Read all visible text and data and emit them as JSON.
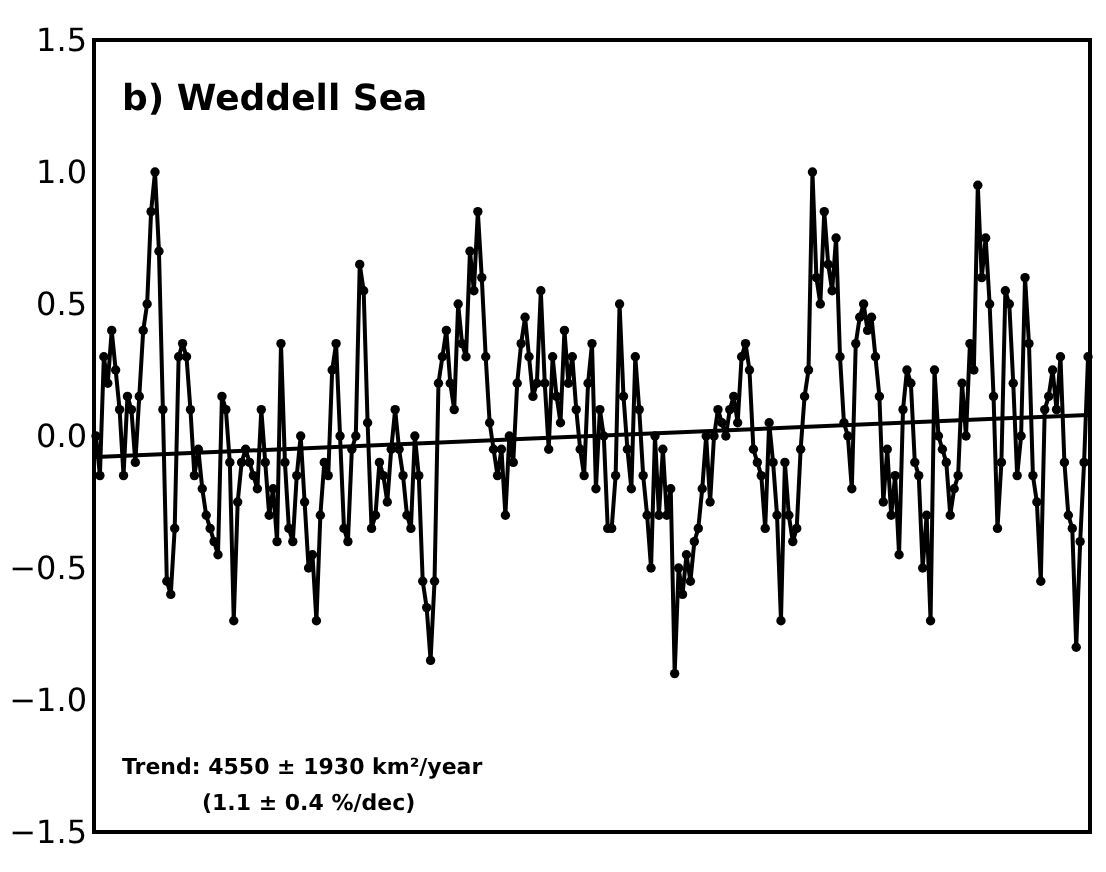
{
  "chart_data": {
    "type": "line",
    "annotations": [
      "b) Weddell Sea",
      "Trend: 4550 ± 1930 km²/year",
      "(1.1 ± 0.4 %/dec)"
    ],
    "ylim": [
      -1.5,
      1.5
    ],
    "yticks": [
      {
        "value": -1.5,
        "label": "−1.5"
      },
      {
        "value": -1.0,
        "label": "−1.0"
      },
      {
        "value": -0.5,
        "label": "−0.5"
      },
      {
        "value": 0.0,
        "label": "0.0"
      },
      {
        "value": 0.5,
        "label": "0.5"
      },
      {
        "value": 1.0,
        "label": "1.0"
      },
      {
        "value": 1.5,
        "label": "1.5"
      }
    ],
    "grid": false,
    "tick_labels": "y",
    "marker": "circle",
    "line_style": "solid",
    "categories": [
      null,
      null,
      null,
      null,
      null,
      null,
      null,
      null,
      null,
      null,
      null,
      null,
      null,
      null,
      null,
      null,
      null,
      null,
      null,
      null,
      null,
      null,
      null,
      null,
      null,
      null,
      null,
      null,
      null,
      null,
      null,
      null,
      null,
      null,
      null,
      null,
      null,
      null,
      null,
      null,
      null,
      null,
      null,
      null,
      null,
      null,
      null,
      null,
      null,
      null,
      null,
      null,
      null,
      null,
      null,
      null,
      null,
      null,
      null,
      null,
      null,
      null,
      null,
      null,
      null,
      null,
      null,
      null,
      null,
      null,
      null,
      null,
      null,
      null,
      null,
      null,
      null,
      null,
      null,
      null,
      null,
      null,
      null,
      null,
      null,
      null,
      null,
      null,
      null,
      null,
      null,
      null,
      null,
      null,
      null,
      null,
      null,
      null,
      null,
      null,
      null,
      null,
      null,
      null,
      null,
      null,
      null,
      null,
      null,
      null,
      null,
      null,
      null,
      null,
      null,
      null,
      null,
      null,
      null,
      null,
      null,
      null,
      null,
      null,
      null,
      null,
      null,
      null,
      null,
      null,
      null,
      null,
      null,
      null,
      null,
      null,
      null,
      null,
      null,
      null,
      null,
      null,
      null,
      null,
      null,
      null,
      null,
      null,
      null,
      null,
      null,
      null,
      null,
      null,
      null,
      null,
      null,
      null,
      null,
      null,
      null,
      null,
      null,
      null,
      null,
      null,
      null,
      null,
      null,
      null,
      null,
      null,
      null,
      null,
      null,
      null,
      null,
      null,
      null,
      null,
      null,
      null,
      null,
      null,
      null,
      null,
      null,
      null,
      null,
      null,
      null,
      null,
      null,
      null,
      null,
      null,
      null,
      null,
      null,
      null,
      null,
      null,
      null,
      null,
      null,
      null,
      null,
      null,
      null,
      null,
      null,
      null,
      null,
      null,
      null,
      null,
      null,
      null,
      null,
      null,
      null,
      null,
      null,
      null,
      null,
      null,
      null,
      null,
      null,
      null,
      null,
      null,
      null,
      null,
      null,
      null,
      null,
      null,
      null,
      null,
      null,
      null,
      null,
      null,
      null,
      null,
      null,
      null,
      null,
      null,
      null,
      null,
      null
    ],
    "series": [
      {
        "color": "#000000",
        "values": [
          0.0,
          -0.15,
          0.3,
          0.2,
          0.4,
          0.25,
          0.1,
          -0.15,
          0.15,
          0.1,
          -0.1,
          0.15,
          0.4,
          0.5,
          0.85,
          1.0,
          0.7,
          0.1,
          -0.55,
          -0.6,
          -0.35,
          0.3,
          0.35,
          0.3,
          0.1,
          -0.15,
          -0.05,
          -0.2,
          -0.3,
          -0.35,
          -0.4,
          -0.45,
          0.15,
          0.1,
          -0.1,
          -0.7,
          -0.25,
          -0.1,
          -0.05,
          -0.1,
          -0.15,
          -0.2,
          0.1,
          -0.1,
          -0.3,
          -0.2,
          -0.4,
          0.35,
          -0.1,
          -0.35,
          -0.4,
          -0.15,
          0.0,
          -0.25,
          -0.5,
          -0.45,
          -0.7,
          -0.3,
          -0.1,
          -0.15,
          0.25,
          0.35,
          0.0,
          -0.35,
          -0.4,
          -0.05,
          0.0,
          0.65,
          0.55,
          0.05,
          -0.35,
          -0.3,
          -0.1,
          -0.15,
          -0.25,
          -0.05,
          0.1,
          -0.05,
          -0.15,
          -0.3,
          -0.35,
          0.0,
          -0.15,
          -0.55,
          -0.65,
          -0.85,
          -0.55,
          0.2,
          0.3,
          0.4,
          0.2,
          0.1,
          0.5,
          0.35,
          0.3,
          0.7,
          0.55,
          0.85,
          0.6,
          0.3,
          0.05,
          -0.05,
          -0.15,
          -0.05,
          -0.3,
          0.0,
          -0.1,
          0.2,
          0.35,
          0.45,
          0.3,
          0.15,
          0.2,
          0.55,
          0.2,
          -0.05,
          0.3,
          0.15,
          0.05,
          0.4,
          0.2,
          0.3,
          0.1,
          -0.05,
          -0.15,
          0.2,
          0.35,
          -0.2,
          0.1,
          0.0,
          -0.35,
          -0.35,
          -0.15,
          0.5,
          0.15,
          -0.05,
          -0.2,
          0.3,
          0.1,
          -0.15,
          -0.3,
          -0.5,
          0.0,
          -0.3,
          -0.05,
          -0.3,
          -0.2,
          -0.9,
          -0.5,
          -0.6,
          -0.45,
          -0.55,
          -0.4,
          -0.35,
          -0.2,
          0.0,
          -0.25,
          0.0,
          0.1,
          0.05,
          0.0,
          0.1,
          0.15,
          0.05,
          0.3,
          0.35,
          0.25,
          -0.05,
          -0.1,
          -0.15,
          -0.35,
          0.05,
          -0.1,
          -0.3,
          -0.7,
          -0.1,
          -0.3,
          -0.4,
          -0.35,
          -0.05,
          0.15,
          0.25,
          1.0,
          0.6,
          0.5,
          0.85,
          0.65,
          0.55,
          0.75,
          0.3,
          0.05,
          0.0,
          -0.2,
          0.35,
          0.45,
          0.5,
          0.4,
          0.45,
          0.3,
          0.15,
          -0.25,
          -0.05,
          -0.3,
          -0.15,
          -0.45,
          0.1,
          0.25,
          0.2,
          -0.1,
          -0.15,
          -0.5,
          -0.3,
          -0.7,
          0.25,
          0.0,
          -0.05,
          -0.1,
          -0.3,
          -0.2,
          -0.15,
          0.2,
          0.0,
          0.35,
          0.25,
          0.95,
          0.6,
          0.75,
          0.5,
          0.15,
          -0.35,
          -0.1,
          0.55,
          0.5,
          0.2,
          -0.15,
          0.0,
          0.6,
          0.35,
          -0.15,
          -0.25,
          -0.55,
          0.1,
          0.15,
          0.25,
          0.1,
          0.3,
          -0.1,
          -0.3,
          -0.35,
          -0.8,
          -0.4,
          -0.1,
          0.3
        ]
      },
      {
        "color": "#000000",
        "type": "line",
        "marker": "none",
        "values": [
          -0.08,
          null,
          null,
          null,
          null,
          null,
          null,
          null,
          null,
          null,
          null,
          null,
          null,
          null,
          null,
          null,
          null,
          null,
          null,
          null,
          null,
          null,
          null,
          null,
          null,
          null,
          null,
          null,
          null,
          null,
          null,
          null,
          null,
          null,
          null,
          null,
          null,
          null,
          null,
          null,
          null,
          null,
          null,
          null,
          null,
          null,
          null,
          null,
          null,
          null,
          null,
          null,
          null,
          null,
          null,
          null,
          null,
          null,
          null,
          null,
          null,
          null,
          null,
          null,
          null,
          null,
          null,
          null,
          null,
          null,
          null,
          null,
          null,
          null,
          null,
          null,
          null,
          null,
          null,
          null,
          null,
          null,
          null,
          null,
          null,
          null,
          null,
          null,
          null,
          null,
          null,
          null,
          null,
          null,
          null,
          null,
          null,
          null,
          null,
          null,
          null,
          null,
          null,
          null,
          null,
          null,
          null,
          null,
          null,
          null,
          null,
          null,
          null,
          null,
          null,
          null,
          null,
          null,
          null,
          null,
          null,
          null,
          null,
          null,
          null,
          null,
          null,
          null,
          null,
          null,
          null,
          null,
          null,
          null,
          null,
          null,
          null,
          null,
          null,
          null,
          null,
          null,
          null,
          null,
          null,
          null,
          null,
          null,
          null,
          null,
          null,
          null,
          null,
          null,
          null,
          null,
          null,
          null,
          null,
          null,
          null,
          null,
          null,
          null,
          null,
          null,
          null,
          null,
          null,
          null,
          null,
          null,
          null,
          null,
          null,
          null,
          null,
          null,
          null,
          null,
          null,
          null,
          null,
          null,
          null,
          null,
          null,
          null,
          null,
          null,
          null,
          null,
          null,
          null,
          null,
          null,
          null,
          null,
          null,
          null,
          null,
          null,
          null,
          null,
          null,
          null,
          null,
          null,
          null,
          null,
          null,
          null,
          null,
          null,
          null,
          null,
          null,
          null,
          null,
          null,
          null,
          null,
          null,
          null,
          null,
          null,
          null,
          null,
          null,
          null,
          null,
          null,
          null,
          null,
          null,
          null,
          null,
          null,
          null,
          null,
          null,
          null,
          null,
          null,
          null,
          null,
          null,
          null,
          null,
          null,
          null,
          null,
          0.08
        ]
      }
    ]
  }
}
